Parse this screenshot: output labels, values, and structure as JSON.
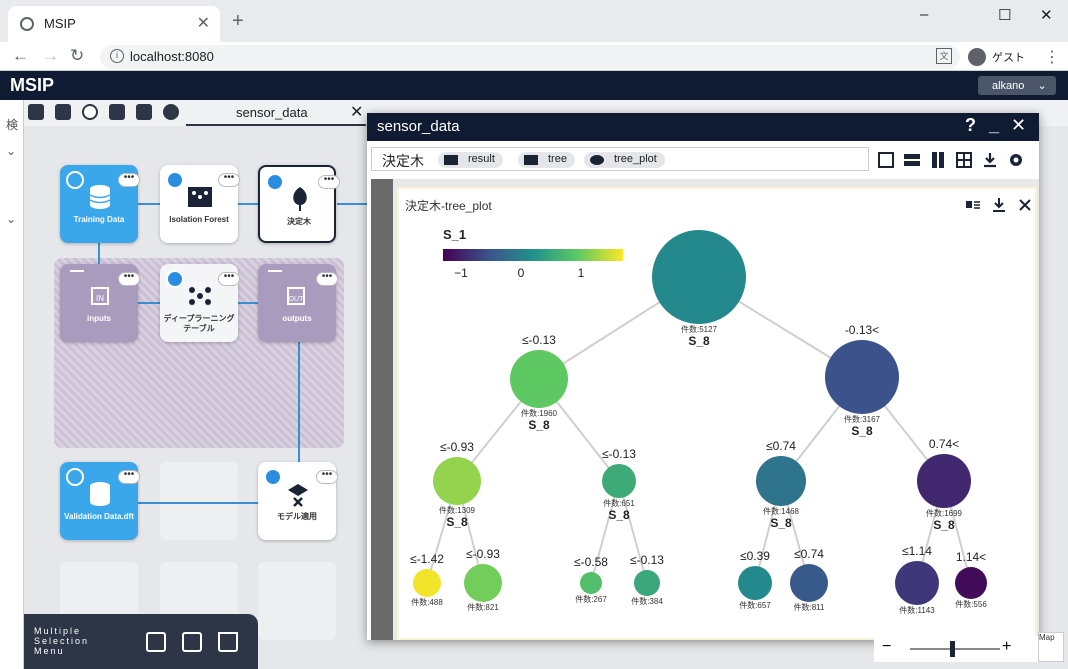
{
  "browser": {
    "tab_title": "MSIP",
    "url": "localhost:8080",
    "profile_label": "ゲスト",
    "new_tab_label": "+",
    "close_tab_label": "✕",
    "window_controls": [
      "–",
      "☐",
      "✕"
    ]
  },
  "app": {
    "title": "MSIP",
    "user": "alkano",
    "left_pane_label": "検"
  },
  "editor": {
    "tab_label": "sensor_data",
    "tab_close": "✕"
  },
  "nodes": {
    "training_data": "Training Data",
    "isolation_forest": "Isolation Forest",
    "decision_tree": "決定木",
    "inputs": "inputs",
    "deep_learning": "ディープラーニング テーブル",
    "outputs": "outputs",
    "validation_data": "Validation Data.dft",
    "apply_model": "モデル適用",
    "more": "•••"
  },
  "multi_select": {
    "label": "Multiple Selection Menu"
  },
  "dialog": {
    "title": "sensor_data",
    "bar_title": "決定木",
    "chips": [
      "result",
      "tree",
      "tree_plot"
    ],
    "plot_title": "決定木-tree_plot"
  },
  "colors": {
    "app_header": "#0f1b33",
    "node_blue": "#3aa7ea",
    "wire": "#3a8ed1"
  },
  "chart_data": {
    "type": "tree",
    "colorbar": {
      "title": "S_1",
      "ticks": [
        "−1",
        "0",
        "1"
      ],
      "range": [
        -1.5,
        1.5
      ],
      "colormap": "viridis"
    },
    "nodes": [
      {
        "id": "root",
        "count_label": "件数:5127",
        "split": "S_8",
        "value": -0.1,
        "edge_label": ""
      },
      {
        "id": "L",
        "count_label": "件数:1960",
        "split": "S_8",
        "value": 0.75,
        "edge_label": "≤-0.13"
      },
      {
        "id": "R",
        "count_label": "件数:3167",
        "split": "S_8",
        "value": -0.75,
        "edge_label": "-0.13<"
      },
      {
        "id": "LL",
        "count_label": "件数:1309",
        "split": "S_8",
        "value": 1.0,
        "edge_label": "≤-0.93"
      },
      {
        "id": "LR",
        "count_label": "件数:651",
        "split": "S_8",
        "value": 0.35,
        "edge_label": "≤-0.13"
      },
      {
        "id": "RL",
        "count_label": "件数:1468",
        "split": "S_8",
        "value": -0.35,
        "edge_label": "≤0.74"
      },
      {
        "id": "RR",
        "count_label": "件数:1699",
        "split": "S_8",
        "value": -1.15,
        "edge_label": "0.74<"
      },
      {
        "id": "LLL",
        "count_label": "件数:488",
        "split": "",
        "value": 1.45,
        "edge_label": "≤-1.42"
      },
      {
        "id": "LLR",
        "count_label": "件数:821",
        "split": "",
        "value": 0.85,
        "edge_label": "≤-0.93"
      },
      {
        "id": "LRL",
        "count_label": "件数:267",
        "split": "",
        "value": 0.6,
        "edge_label": "≤-0.58"
      },
      {
        "id": "LRR",
        "count_label": "件数:384",
        "split": "",
        "value": 0.3,
        "edge_label": "≤-0.13"
      },
      {
        "id": "RLL",
        "count_label": "件数:657",
        "split": "",
        "value": -0.1,
        "edge_label": "≤0.39"
      },
      {
        "id": "RLR",
        "count_label": "件数:811",
        "split": "",
        "value": -0.65,
        "edge_label": "≤0.74"
      },
      {
        "id": "RRL",
        "count_label": "件数:1143",
        "split": "",
        "value": -1.0,
        "edge_label": "≤1.14"
      },
      {
        "id": "RRR",
        "count_label": "件数:556",
        "split": "",
        "value": -1.4,
        "edge_label": "1.14<"
      }
    ],
    "edges": [
      [
        "root",
        "L"
      ],
      [
        "root",
        "R"
      ],
      [
        "L",
        "LL"
      ],
      [
        "L",
        "LR"
      ],
      [
        "R",
        "RL"
      ],
      [
        "R",
        "RR"
      ],
      [
        "LL",
        "LLL"
      ],
      [
        "LL",
        "LLR"
      ],
      [
        "LR",
        "LRL"
      ],
      [
        "LR",
        "LRR"
      ],
      [
        "RL",
        "RLL"
      ],
      [
        "RL",
        "RLR"
      ],
      [
        "RR",
        "RRL"
      ],
      [
        "RR",
        "RRR"
      ]
    ]
  },
  "zoom": {
    "minus": "−",
    "plus": "+",
    "minimap_label": "Map"
  }
}
